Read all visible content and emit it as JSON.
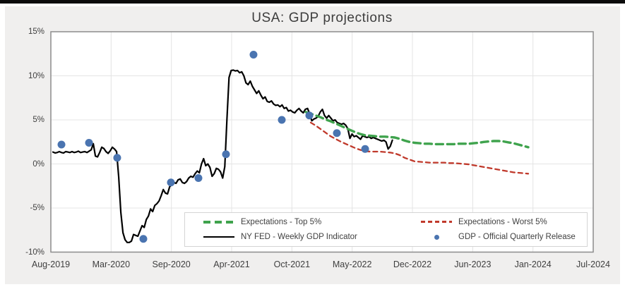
{
  "chart_data": {
    "type": "line",
    "title": "USA: GDP projections",
    "grid": true,
    "plot_bg": "#ffffff",
    "outer_bg": "#f0efee",
    "border_color": "#8c8c8c",
    "gridline_color": "#e4e4e4",
    "y_range": [
      -10,
      15
    ],
    "y_ticks": [
      {
        "label": "15%",
        "value": 15
      },
      {
        "label": "10%",
        "value": 10
      },
      {
        "label": "5%",
        "value": 5
      },
      {
        "label": "0%",
        "value": 0
      },
      {
        "label": "-5%",
        "value": -5
      },
      {
        "label": "-10%",
        "value": -10
      }
    ],
    "x_tick_labels": [
      "Aug-2019",
      "Mar-2020",
      "Sep-2020",
      "Apr-2021",
      "Oct-2021",
      "May-2022",
      "Dec-2022",
      "Jun-2023",
      "Jan-2024",
      "Jul-2024"
    ],
    "x_unit": "gridline-interval index: x=i corresponds to x_tick_labels[i]",
    "legend_position": "inside-bottom-right",
    "legend": [
      {
        "label": "Expectations - Top 5%",
        "swatch": "green-dash",
        "color": "#3fa34d"
      },
      {
        "label": "Expectations - Worst 5%",
        "swatch": "red-dash",
        "color": "#c0392b"
      },
      {
        "label": "NY FED - Weekly GDP Indicator",
        "swatch": "black-line",
        "color": "#000000"
      },
      {
        "label": "GDP - Official Quarterly Release",
        "swatch": "blue-dot",
        "color": "#4a74b0"
      }
    ],
    "series": [
      {
        "name": "NY FED - Weekly GDP Indicator",
        "kind": "line",
        "color": "#000000",
        "dash": "solid",
        "width": 2.2,
        "x_start": 0.0352,
        "x_step": 0.0352,
        "values": [
          1.35,
          1.25,
          1.3,
          1.4,
          1.3,
          1.25,
          1.4,
          1.35,
          1.3,
          1.4,
          1.3,
          1.35,
          1.45,
          1.3,
          1.35,
          1.4,
          1.3,
          1.45,
          1.6,
          2.3,
          0.9,
          0.8,
          1.3,
          1.9,
          1.75,
          1.4,
          1.2,
          1.5,
          1.9,
          1.7,
          1.4,
          -1.5,
          -5.5,
          -7.8,
          -8.6,
          -8.9,
          -8.9,
          -8.75,
          -8.0,
          -8.1,
          -8.2,
          -7.6,
          -7.0,
          -7.2,
          -6.3,
          -5.9,
          -5.1,
          -5.4,
          -4.7,
          -4.5,
          -4.2,
          -3.6,
          -2.9,
          -3.3,
          -3.4,
          -2.6,
          -2.3,
          -2.1,
          -2.2,
          -1.8,
          -1.7,
          -2.1,
          -2.2,
          -2.0,
          -1.6,
          -1.4,
          -1.5,
          -1.1,
          -0.8,
          -1.0,
          0.0,
          0.6,
          -0.2,
          0.0,
          -0.4,
          -1.4,
          -1.1,
          -0.5,
          -0.6,
          -0.9,
          -1.6,
          -0.3,
          5.0,
          9.8,
          10.6,
          10.65,
          10.55,
          10.6,
          10.35,
          10.45,
          10.0,
          9.2,
          9.0,
          9.4,
          8.8,
          8.4,
          8.0,
          8.3,
          7.8,
          7.4,
          7.6,
          7.1,
          7.0,
          7.15,
          6.8,
          6.65,
          6.7,
          6.5,
          6.7,
          6.3,
          6.4,
          6.0,
          6.1,
          5.9,
          5.8,
          6.1,
          6.3,
          6.0,
          5.8,
          6.2,
          6.3,
          5.7,
          4.9,
          5.1,
          5.2,
          5.4,
          5.9,
          6.2,
          5.5,
          5.2,
          5.5,
          5.2,
          4.9,
          5.0,
          4.7,
          4.6,
          4.5,
          4.6,
          4.4,
          4.0,
          2.9,
          3.4,
          3.1,
          3.2,
          3.0,
          2.8,
          3.2,
          3.1,
          3.0,
          3.1,
          2.9,
          3.0,
          2.9,
          2.8,
          2.7,
          2.6,
          2.7,
          2.5,
          1.7,
          2.0,
          2.7
        ]
      },
      {
        "name": "Expectations - Top 5%",
        "kind": "line",
        "color": "#3fa34d",
        "dash": "10 6",
        "width": 3.4,
        "x_start": 4.2305,
        "x_step": 0.08203,
        "values": [
          5.9,
          5.7,
          5.5,
          5.3,
          5.05,
          4.85,
          4.6,
          4.35,
          4.1,
          3.85,
          3.6,
          3.4,
          3.25,
          3.2,
          3.15,
          3.1,
          3.1,
          3.05,
          3.0,
          2.85,
          2.65,
          2.5,
          2.4,
          2.35,
          2.3,
          2.3,
          2.25,
          2.25,
          2.25,
          2.25,
          2.25,
          2.3,
          2.3,
          2.3,
          2.35,
          2.4,
          2.5,
          2.55,
          2.6,
          2.6,
          2.55,
          2.45,
          2.35,
          2.2,
          2.05,
          1.9
        ]
      },
      {
        "name": "Expectations - Worst 5%",
        "kind": "line",
        "color": "#c0392b",
        "dash": "6 5",
        "width": 2.3,
        "x_start": 4.3125,
        "x_step": 0.08203,
        "values": [
          4.7,
          4.35,
          3.95,
          3.55,
          3.15,
          2.85,
          2.55,
          2.3,
          2.05,
          1.8,
          1.6,
          1.45,
          1.4,
          1.4,
          1.4,
          1.35,
          1.3,
          1.2,
          1.0,
          0.7,
          0.5,
          0.3,
          0.25,
          0.2,
          0.15,
          0.15,
          0.15,
          0.15,
          0.1,
          0.1,
          0.05,
          0.0,
          -0.05,
          -0.15,
          -0.25,
          -0.35,
          -0.45,
          -0.55,
          -0.65,
          -0.75,
          -0.85,
          -0.95,
          -1.0,
          -1.05,
          -1.1
        ]
      },
      {
        "name": "GDP - Official Quarterly Release",
        "kind": "scatter",
        "color": "#4a74b0",
        "radius": 5.5,
        "points": [
          {
            "quarter": "Q3-2019",
            "x": 0.176,
            "y": 2.2
          },
          {
            "quarter": "Q4-2019",
            "x": 0.633,
            "y": 2.4
          },
          {
            "quarter": "Q1-2020",
            "x": 1.101,
            "y": 0.7
          },
          {
            "quarter": "Q2-2020",
            "x": 1.535,
            "y": -8.5
          },
          {
            "quarter": "Q3-2020",
            "x": 1.992,
            "y": -2.1
          },
          {
            "quarter": "Q4-2020",
            "x": 2.449,
            "y": -1.6
          },
          {
            "quarter": "Q1-2021",
            "x": 2.906,
            "y": 1.1
          },
          {
            "quarter": "Q2-2021",
            "x": 3.363,
            "y": 12.4
          },
          {
            "quarter": "Q3-2021",
            "x": 3.832,
            "y": 5.0
          },
          {
            "quarter": "Q4-2021",
            "x": 4.289,
            "y": 5.5
          },
          {
            "quarter": "Q1-2022",
            "x": 4.746,
            "y": 3.5
          },
          {
            "quarter": "Q2-2022",
            "x": 5.215,
            "y": 1.7
          }
        ]
      }
    ]
  }
}
